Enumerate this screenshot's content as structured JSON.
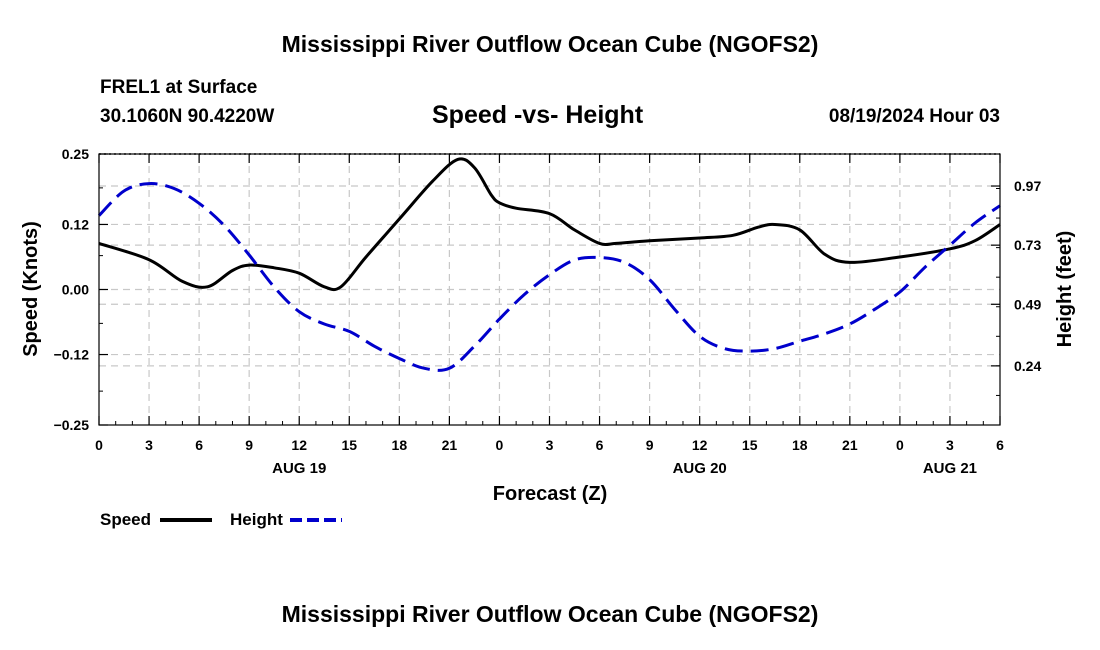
{
  "page": {
    "top_title": "Mississippi River Outflow Ocean Cube (NGOFS2)",
    "bottom_title": "Mississippi River Outflow Ocean Cube (NGOFS2)",
    "station": "FREL1 at Surface",
    "coords": "30.1060N  90.4220W",
    "subtitle": "Speed -vs- Height",
    "datetime": "08/19/2024 Hour 03"
  },
  "chart_data": {
    "type": "line",
    "title": "Speed -vs- Height",
    "xlabel": "Forecast (Z)",
    "ylabel": "Speed (Knots)",
    "y2label": "Height (feet)",
    "grid": true,
    "x_range": [
      0,
      54
    ],
    "x_ticks": [
      0,
      3,
      6,
      9,
      12,
      15,
      18,
      21,
      24,
      27,
      30,
      33,
      36,
      39,
      42,
      45,
      48,
      51,
      54
    ],
    "x_tick_labels": [
      "0",
      "3",
      "6",
      "9",
      "12",
      "15",
      "18",
      "21",
      "0",
      "3",
      "6",
      "9",
      "12",
      "15",
      "18",
      "21",
      "0",
      "3",
      "6"
    ],
    "date_labels": [
      {
        "x": 12,
        "label": "AUG 19"
      },
      {
        "x": 36,
        "label": "AUG 20"
      },
      {
        "x": 51,
        "label": "AUG 21"
      }
    ],
    "ylim": [
      -0.25,
      0.25
    ],
    "y_ticks": [
      -0.25,
      -0.12,
      0.0,
      0.12,
      0.25
    ],
    "y_tick_labels": [
      "−0.25",
      "−0.12",
      "0.00",
      "0.12",
      "0.25"
    ],
    "y2lim": [
      0.0,
      1.1
    ],
    "y2_ticks": [
      0.24,
      0.49,
      0.73,
      0.97
    ],
    "y2_tick_labels": [
      "0.24",
      "0.49",
      "0.73",
      "0.97"
    ],
    "legend": {
      "placement": "bottom-left",
      "entries": [
        "Speed",
        "Height"
      ]
    },
    "series": [
      {
        "name": "Speed",
        "axis": "left",
        "color": "#000000",
        "dash": "solid",
        "x": [
          0,
          3,
          5,
          6.5,
          8,
          9,
          10.5,
          12,
          13.5,
          14.5,
          16,
          18,
          20,
          21.5,
          22.5,
          23.5,
          24,
          25,
          27,
          28.5,
          30,
          31,
          33,
          36,
          38,
          39.5,
          40.5,
          42,
          43.5,
          45,
          48,
          51,
          52.5,
          54
        ],
        "values": [
          0.085,
          0.055,
          0.015,
          0.005,
          0.035,
          0.045,
          0.04,
          0.03,
          0.005,
          0.005,
          0.06,
          0.13,
          0.2,
          0.24,
          0.225,
          0.175,
          0.16,
          0.15,
          0.14,
          0.11,
          0.085,
          0.085,
          0.09,
          0.095,
          0.1,
          0.115,
          0.12,
          0.11,
          0.065,
          0.05,
          0.06,
          0.075,
          0.09,
          0.12
        ]
      },
      {
        "name": "Height",
        "axis": "right",
        "color": "#0000cc",
        "dash": "dashed",
        "x": [
          0,
          1.5,
          3,
          4.5,
          6,
          7.5,
          9,
          10.5,
          12,
          13.5,
          15,
          16.5,
          18,
          19.5,
          21,
          22.5,
          24,
          25.5,
          27,
          28.5,
          30,
          31.5,
          33,
          34.5,
          36,
          37.5,
          39,
          40.5,
          42,
          43.5,
          45,
          46.5,
          48,
          49.5,
          51,
          52.5,
          54
        ],
        "values": [
          0.85,
          0.95,
          0.98,
          0.96,
          0.9,
          0.81,
          0.69,
          0.56,
          0.46,
          0.41,
          0.38,
          0.32,
          0.27,
          0.23,
          0.23,
          0.32,
          0.43,
          0.53,
          0.61,
          0.67,
          0.68,
          0.66,
          0.59,
          0.47,
          0.36,
          0.31,
          0.3,
          0.31,
          0.34,
          0.37,
          0.41,
          0.47,
          0.54,
          0.64,
          0.73,
          0.82,
          0.89
        ]
      }
    ]
  }
}
